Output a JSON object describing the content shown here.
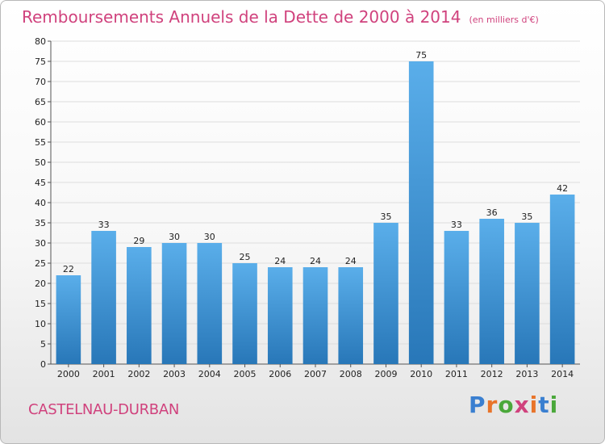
{
  "header": {
    "title": "Remboursements Annuels de la Dette de 2000 à 2014",
    "unit": "(en milliers d'€)"
  },
  "footer": {
    "city": "CASTELNAU-DURBAN",
    "logo": "Proxiti"
  },
  "colors": {
    "title": "#d0427d",
    "bar_light": "#5aaeea",
    "bar_dark": "#2877b8",
    "grid": "#dddddd"
  },
  "chart_data": {
    "type": "bar",
    "title": "Remboursements Annuels de la Dette de 2000 à 2014",
    "subtitle": "(en milliers d'€)",
    "categories": [
      "2000",
      "2001",
      "2002",
      "2003",
      "2004",
      "2005",
      "2006",
      "2007",
      "2008",
      "2009",
      "2010",
      "2011",
      "2012",
      "2013",
      "2014"
    ],
    "values": [
      22,
      33,
      29,
      30,
      30,
      25,
      24,
      24,
      24,
      35,
      75,
      33,
      36,
      35,
      42
    ],
    "ylim": [
      0,
      80
    ],
    "yticks": [
      0,
      5,
      10,
      15,
      20,
      25,
      30,
      35,
      40,
      45,
      50,
      55,
      60,
      65,
      70,
      75,
      80
    ],
    "grid": true,
    "legend": "none"
  }
}
